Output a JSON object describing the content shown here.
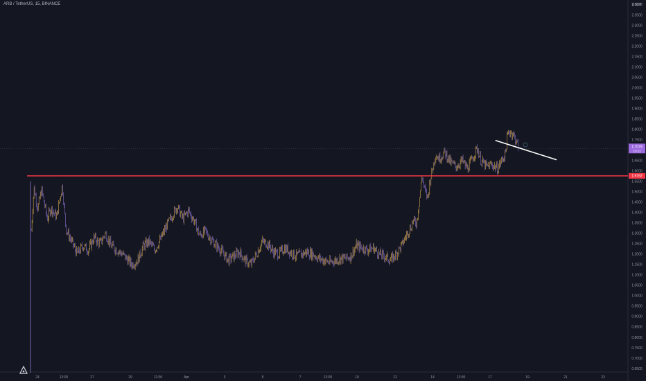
{
  "header": {
    "symbol_line": "ARB / TetherUS, 15, BINANCE"
  },
  "axis_currency": "USDT",
  "price_labels": {
    "current": "1.7079",
    "current_sub": "13:11",
    "level": "1.5762"
  },
  "chart_data": {
    "type": "candlestick",
    "title": "ARB / TetherUS, 15, BINANCE",
    "y_unit": "USDT",
    "ylim": [
      0.63,
      2.43
    ],
    "y_ticks": [
      "2.4000",
      "2.3500",
      "2.3000",
      "2.2500",
      "2.2000",
      "2.1500",
      "2.1000",
      "2.0500",
      "2.0000",
      "1.9500",
      "1.9000",
      "1.8500",
      "1.8000",
      "1.7500",
      "1.7000",
      "1.6500",
      "1.6000",
      "1.5500",
      "1.5000",
      "1.4500",
      "1.4000",
      "1.3500",
      "1.3000",
      "1.2500",
      "1.2000",
      "1.1500",
      "1.1000",
      "1.0500",
      "1.0000",
      "0.9500",
      "0.9000",
      "0.8500",
      "0.8000",
      "0.7500",
      "0.7000",
      "0.6500"
    ],
    "x_ticks": [
      "24",
      "12:00",
      "27",
      "29",
      "12:00",
      "Apr",
      "3",
      "5",
      "7",
      "12:00",
      "10",
      "12",
      "14",
      "12:00",
      "17",
      "19",
      "21",
      "23"
    ],
    "price_path": [
      [
        23.2,
        0.63
      ],
      [
        23.25,
        1.3
      ],
      [
        23.4,
        1.52
      ],
      [
        23.6,
        1.42
      ],
      [
        23.8,
        1.51
      ],
      [
        24.1,
        1.37
      ],
      [
        24.3,
        1.42
      ],
      [
        24.6,
        1.38
      ],
      [
        24.9,
        1.53
      ],
      [
        25.1,
        1.32
      ],
      [
        25.4,
        1.26
      ],
      [
        25.7,
        1.2
      ],
      [
        26.0,
        1.24
      ],
      [
        26.3,
        1.22
      ],
      [
        26.6,
        1.28
      ],
      [
        26.9,
        1.25
      ],
      [
        27.2,
        1.3
      ],
      [
        27.5,
        1.24
      ],
      [
        27.8,
        1.22
      ],
      [
        28.1,
        1.2
      ],
      [
        28.3,
        1.18
      ],
      [
        28.6,
        1.15
      ],
      [
        28.9,
        1.17
      ],
      [
        29.2,
        1.24
      ],
      [
        29.5,
        1.26
      ],
      [
        29.8,
        1.22
      ],
      [
        30.1,
        1.27
      ],
      [
        30.4,
        1.33
      ],
      [
        30.7,
        1.38
      ],
      [
        31.0,
        1.43
      ],
      [
        31.3,
        1.37
      ],
      [
        31.6,
        1.41
      ],
      [
        31.9,
        1.36
      ],
      [
        32.2,
        1.29
      ],
      [
        32.5,
        1.31
      ],
      [
        32.8,
        1.27
      ],
      [
        33.1,
        1.24
      ],
      [
        33.4,
        1.21
      ],
      [
        33.7,
        1.17
      ],
      [
        34.0,
        1.19
      ],
      [
        34.3,
        1.21
      ],
      [
        34.6,
        1.17
      ],
      [
        34.9,
        1.15
      ],
      [
        35.2,
        1.2
      ],
      [
        35.5,
        1.26
      ],
      [
        35.8,
        1.25
      ],
      [
        36.1,
        1.21
      ],
      [
        36.4,
        1.2
      ],
      [
        36.7,
        1.23
      ],
      [
        37.0,
        1.21
      ],
      [
        37.3,
        1.19
      ],
      [
        37.6,
        1.2
      ],
      [
        37.9,
        1.21
      ],
      [
        38.2,
        1.2
      ],
      [
        38.5,
        1.18
      ],
      [
        38.8,
        1.17
      ],
      [
        39.1,
        1.16
      ],
      [
        39.4,
        1.17
      ],
      [
        39.7,
        1.18
      ],
      [
        40.0,
        1.18
      ],
      [
        40.2,
        1.19
      ],
      [
        40.5,
        1.24
      ],
      [
        40.8,
        1.23
      ],
      [
        41.1,
        1.22
      ],
      [
        41.4,
        1.23
      ],
      [
        41.7,
        1.2
      ],
      [
        42.0,
        1.19
      ],
      [
        42.3,
        1.17
      ],
      [
        42.6,
        1.2
      ],
      [
        42.9,
        1.24
      ],
      [
        43.2,
        1.3
      ],
      [
        43.4,
        1.33
      ],
      [
        43.5,
        1.36
      ],
      [
        43.7,
        1.35
      ],
      [
        43.8,
        1.42
      ],
      [
        43.9,
        1.5
      ],
      [
        44.0,
        1.58
      ],
      [
        44.1,
        1.52
      ],
      [
        44.2,
        1.49
      ],
      [
        44.3,
        1.47
      ],
      [
        44.4,
        1.55
      ],
      [
        44.6,
        1.63
      ],
      [
        44.7,
        1.68
      ],
      [
        44.9,
        1.66
      ],
      [
        45.2,
        1.69
      ],
      [
        45.5,
        1.64
      ],
      [
        45.8,
        1.62
      ],
      [
        46.1,
        1.65
      ],
      [
        46.4,
        1.61
      ],
      [
        46.7,
        1.67
      ],
      [
        46.9,
        1.71
      ],
      [
        47.1,
        1.65
      ],
      [
        47.4,
        1.62
      ],
      [
        47.7,
        1.63
      ],
      [
        48.0,
        1.61
      ],
      [
        48.2,
        1.65
      ],
      [
        48.4,
        1.68
      ],
      [
        48.5,
        1.76
      ],
      [
        48.6,
        1.79
      ],
      [
        48.8,
        1.78
      ],
      [
        49.0,
        1.74
      ],
      [
        49.1,
        1.71
      ]
    ],
    "trendline": {
      "from": [
        47.9,
        1.746
      ],
      "to": [
        51.1,
        1.654
      ]
    },
    "horizontal_level": 1.5762,
    "current_price": 1.7079,
    "grid": false,
    "colors": {
      "up": "#e5b454",
      "down": "#8f74d6",
      "level": "#f23645",
      "trendline": "#ffffff",
      "background": "#141722"
    }
  }
}
